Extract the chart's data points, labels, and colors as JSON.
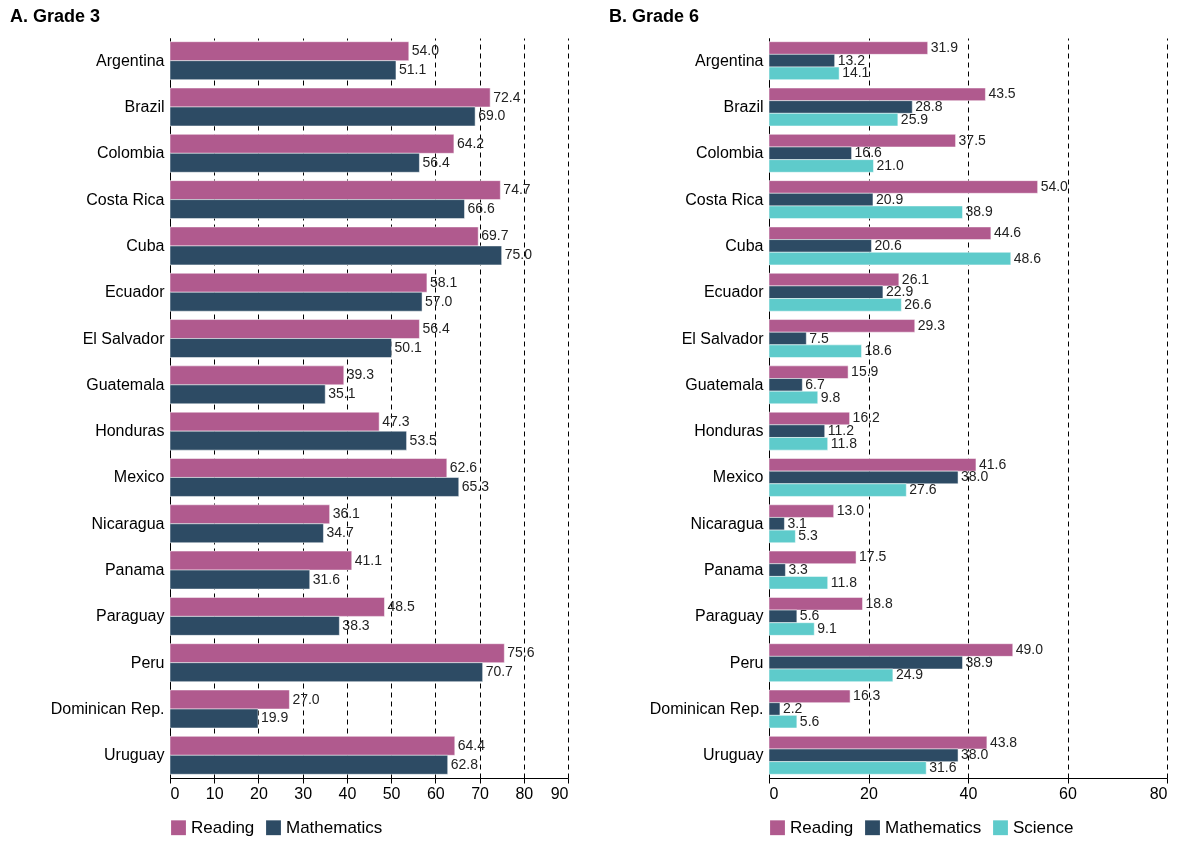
{
  "chart_data": [
    {
      "type": "bar",
      "title": "A. Grade 3",
      "orientation": "horizontal",
      "categories": [
        "Argentina",
        "Brazil",
        "Colombia",
        "Costa Rica",
        "Cuba",
        "Ecuador",
        "El Salvador",
        "Guatemala",
        "Honduras",
        "Mexico",
        "Nicaragua",
        "Panama",
        "Paraguay",
        "Peru",
        "Dominican Rep.",
        "Uruguay"
      ],
      "series": [
        {
          "name": "Reading",
          "color": "#b05a8e",
          "values": [
            54.0,
            72.4,
            64.2,
            74.7,
            69.7,
            58.1,
            56.4,
            39.3,
            47.3,
            62.6,
            36.1,
            41.1,
            48.5,
            75.6,
            27.0,
            64.4
          ],
          "value_labels": [
            "54.0",
            "72.4",
            "64.2",
            "74.7",
            "69.7",
            "58.1",
            "56.4",
            "39.3",
            "47.3",
            "62.6",
            "36.1",
            "41.1",
            "48.5",
            "75.6",
            "27.0",
            "64.4"
          ]
        },
        {
          "name": "Mathematics",
          "color": "#2d4b64",
          "values": [
            51.1,
            69.0,
            56.4,
            66.6,
            75.0,
            57.0,
            50.1,
            35.1,
            53.5,
            65.3,
            34.7,
            31.6,
            38.3,
            70.7,
            19.9,
            62.8
          ],
          "value_labels": [
            "51.1",
            "69.0",
            "56.4",
            "66.6",
            "75.0",
            "57.0",
            "50.1",
            "35.1",
            "53.5",
            "65.3",
            "34.7",
            "31.6",
            "38.3",
            "70.7",
            "19.9",
            "62.8"
          ]
        }
      ],
      "xlim": [
        0,
        90
      ],
      "xticks": [
        0,
        10,
        20,
        30,
        40,
        50,
        60,
        70,
        80,
        90
      ],
      "grid": "x",
      "legend": "bottom"
    },
    {
      "type": "bar",
      "title": "B. Grade 6",
      "orientation": "horizontal",
      "categories": [
        "Argentina",
        "Brazil",
        "Colombia",
        "Costa Rica",
        "Cuba",
        "Ecuador",
        "El Salvador",
        "Guatemala",
        "Honduras",
        "Mexico",
        "Nicaragua",
        "Panama",
        "Paraguay",
        "Peru",
        "Dominican Rep.",
        "Uruguay"
      ],
      "series": [
        {
          "name": "Reading",
          "color": "#b05a8e",
          "values": [
            31.9,
            43.5,
            37.5,
            54.0,
            44.6,
            26.1,
            29.3,
            15.9,
            16.2,
            41.6,
            13.0,
            17.5,
            18.8,
            49.0,
            16.3,
            43.8
          ],
          "value_labels": [
            "31.9",
            "43.5",
            "37.5",
            "54.0",
            "44.6",
            "26.1",
            "29.3",
            "15.9",
            "16.2",
            "41.6",
            "13.0",
            "17.5",
            "18.8",
            "49.0",
            "16.3",
            "43.8"
          ]
        },
        {
          "name": "Mathematics",
          "color": "#2d4b64",
          "values": [
            13.2,
            28.8,
            16.6,
            20.9,
            20.6,
            22.9,
            7.5,
            6.7,
            11.2,
            38.0,
            3.1,
            3.3,
            5.6,
            38.9,
            2.2,
            38.0
          ],
          "value_labels": [
            "13.2",
            "28.8",
            "16.6",
            "20.9",
            "20.6",
            "22.9",
            "7.5",
            "6.7",
            "11.2",
            "38.0",
            "3.1",
            "3.3",
            "5.6",
            "38.9",
            "2.2",
            "38.0"
          ]
        },
        {
          "name": "Science",
          "color": "#5ecbcb",
          "values": [
            14.1,
            25.9,
            21.0,
            38.9,
            48.6,
            26.6,
            18.6,
            9.8,
            11.8,
            27.6,
            5.3,
            11.8,
            9.1,
            24.9,
            5.6,
            31.6
          ],
          "value_labels": [
            "14.1",
            "25.9",
            "21.0",
            "38.9",
            "48.6",
            "26.6",
            "18.6",
            "9.8",
            "11.8",
            "27.6",
            "5.3",
            "11.8",
            "9.1",
            "24.9",
            "5.6",
            "31.6"
          ]
        }
      ],
      "xlim": [
        0,
        80
      ],
      "xticks": [
        0,
        20,
        40,
        60,
        80
      ],
      "grid": "x",
      "legend": "bottom"
    }
  ]
}
